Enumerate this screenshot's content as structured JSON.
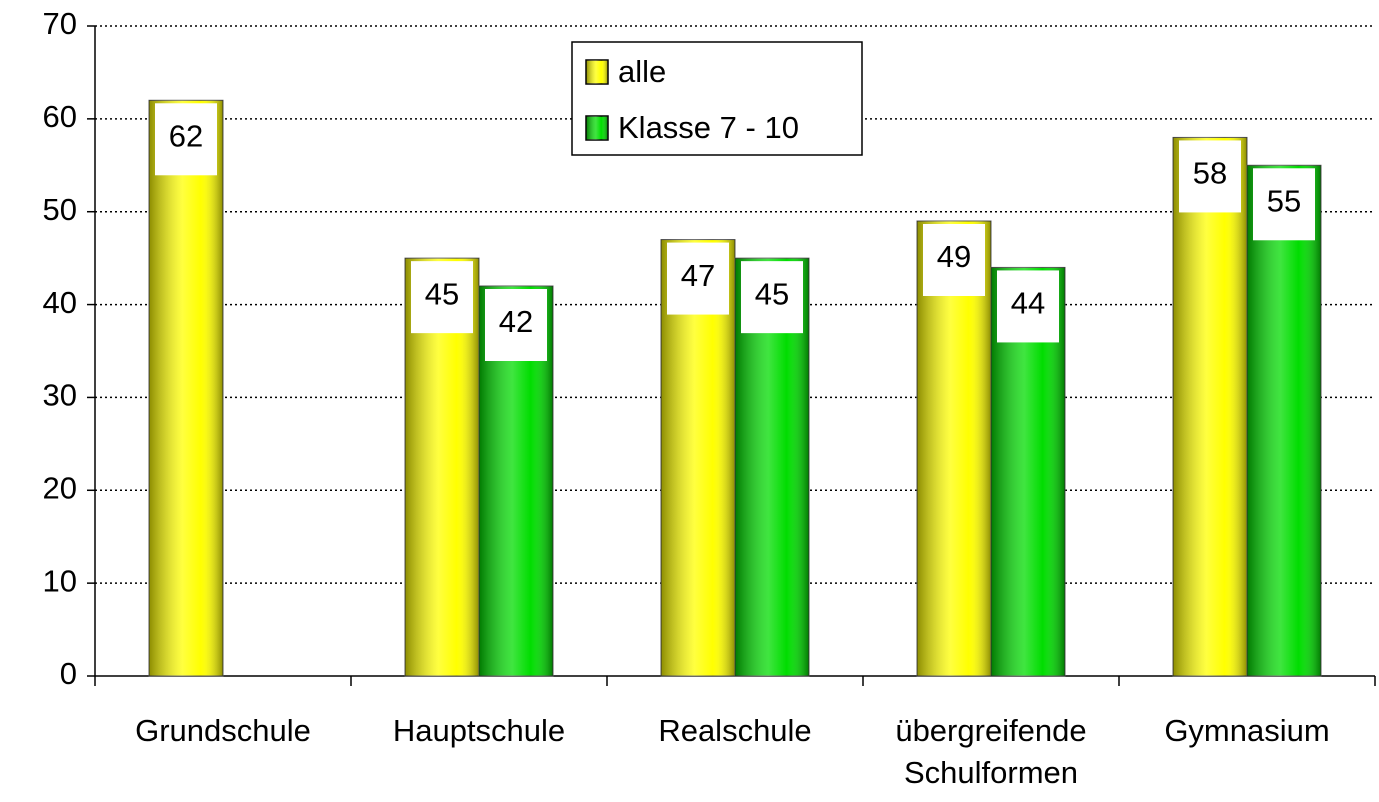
{
  "chart_data": {
    "type": "bar",
    "categories": [
      "Grundschule",
      "Hauptschule",
      "Realschule",
      "übergreifende Schulformen",
      "Gymnasium"
    ],
    "series": [
      {
        "name": "alle",
        "color": "#ffff00",
        "values": [
          62,
          45,
          47,
          49,
          58
        ]
      },
      {
        "name": "Klasse 7 - 10",
        "color": "#00dd00",
        "values": [
          null,
          42,
          45,
          44,
          55
        ]
      }
    ],
    "ylim": [
      0,
      70
    ],
    "yticks": [
      0,
      10,
      20,
      30,
      40,
      50,
      60,
      70
    ],
    "grid": true,
    "legend": "top"
  }
}
